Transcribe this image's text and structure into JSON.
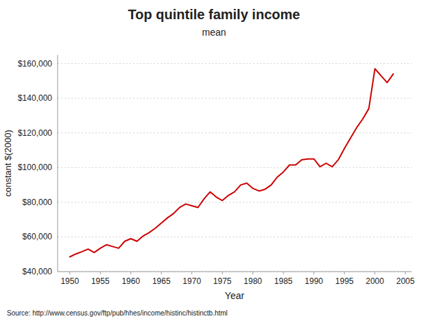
{
  "chart_data": {
    "type": "line",
    "title": "Top quintile family income",
    "subtitle": "mean",
    "xlabel": "Year",
    "ylabel": "constant $(2000)",
    "source": "Source: http://www.census.gov/ftp/pub/hhes/income/histinc/histinctb.html",
    "color": "#cc0000",
    "grid": true,
    "xlim": [
      1948,
      2006
    ],
    "ylim": [
      40000,
      165000
    ],
    "xticks": [
      1950,
      1955,
      1960,
      1965,
      1970,
      1975,
      1980,
      1985,
      1990,
      1995,
      2000,
      2005
    ],
    "yticks": [
      {
        "value": 40000,
        "label": "$40,000"
      },
      {
        "value": 60000,
        "label": "$60,000"
      },
      {
        "value": 80000,
        "label": "$80,000"
      },
      {
        "value": 100000,
        "label": "$100,000"
      },
      {
        "value": 120000,
        "label": "$120,000"
      },
      {
        "value": 140000,
        "label": "$140,000"
      },
      {
        "value": 160000,
        "label": "$160,000"
      }
    ],
    "x": [
      1950,
      1951,
      1952,
      1953,
      1954,
      1955,
      1956,
      1957,
      1958,
      1959,
      1960,
      1961,
      1962,
      1963,
      1964,
      1965,
      1966,
      1967,
      1968,
      1969,
      1970,
      1971,
      1972,
      1973,
      1974,
      1975,
      1976,
      1977,
      1978,
      1979,
      1980,
      1981,
      1982,
      1983,
      1984,
      1985,
      1986,
      1987,
      1988,
      1989,
      1990,
      1991,
      1992,
      1993,
      1994,
      1995,
      1996,
      1997,
      1998,
      1999,
      2000,
      2001,
      2002,
      2003
    ],
    "values": [
      48500,
      50200,
      51500,
      53000,
      51000,
      53500,
      55500,
      54500,
      53500,
      57500,
      59000,
      57500,
      60500,
      62500,
      65000,
      68000,
      71000,
      73500,
      77000,
      79000,
      78000,
      77000,
      82000,
      86000,
      83000,
      81000,
      84000,
      86000,
      90000,
      91000,
      88000,
      86500,
      87500,
      90000,
      94500,
      97500,
      101500,
      101500,
      104500,
      105000,
      105000,
      100500,
      102500,
      100500,
      104500,
      111000,
      117000,
      123000,
      128000,
      134000,
      157000,
      153000,
      149000,
      154000
    ]
  }
}
